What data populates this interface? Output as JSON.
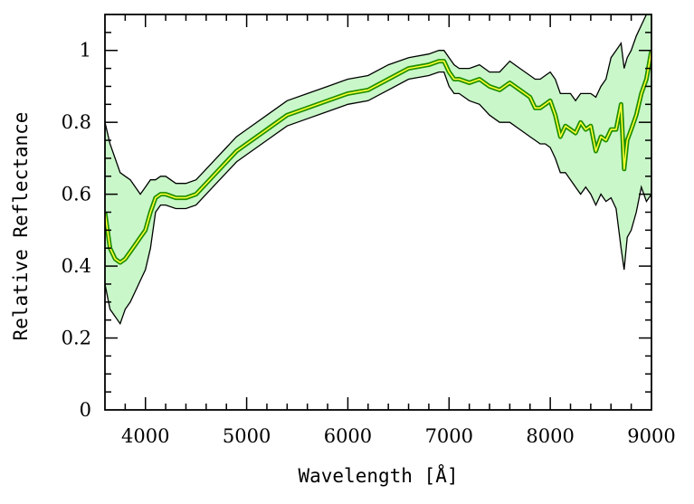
{
  "chart_data": {
    "type": "line",
    "xlabel": "Wavelength [Å]",
    "ylabel": "Relative Reflectance",
    "xlim": [
      3600,
      9000
    ],
    "ylim": [
      0,
      1.1
    ],
    "xticks": [
      4000,
      5000,
      6000,
      7000,
      8000,
      9000
    ],
    "xtick_labels": [
      "4000",
      "5000",
      "6000",
      "7000",
      "8000",
      "9000"
    ],
    "yticks": [
      0,
      0.2,
      0.4,
      0.6,
      0.8,
      1.0
    ],
    "ytick_labels": [
      "0",
      "0.2",
      "0.4",
      "0.6",
      "0.8",
      "1"
    ],
    "grid": false,
    "colors": {
      "line_outer": "#1f8f00",
      "line_inner": "#ffff33",
      "band_fill": "#c9f7c9",
      "band_edge": "#000000"
    },
    "series": [
      {
        "values_x": [
          3600,
          3650,
          3700,
          3750,
          3800,
          3850,
          3900,
          3950,
          4000,
          4050,
          4100,
          4150,
          4200,
          4300,
          4400,
          4500,
          4600,
          4700,
          4800,
          4900,
          5000,
          5200,
          5400,
          5600,
          5800,
          6000,
          6200,
          6400,
          6600,
          6800,
          6900,
          6950,
          7000,
          7050,
          7100,
          7200,
          7300,
          7400,
          7500,
          7600,
          7700,
          7800,
          7850,
          7900,
          7950,
          8000,
          8050,
          8100,
          8150,
          8200,
          8250,
          8300,
          8350,
          8400,
          8450,
          8500,
          8550,
          8600,
          8650,
          8700,
          8730,
          8760,
          8800,
          8850,
          8900,
          8950,
          9000
        ],
        "values_y": [
          0.55,
          0.45,
          0.42,
          0.41,
          0.42,
          0.44,
          0.46,
          0.48,
          0.5,
          0.55,
          0.59,
          0.6,
          0.6,
          0.59,
          0.59,
          0.6,
          0.63,
          0.66,
          0.69,
          0.72,
          0.74,
          0.78,
          0.82,
          0.84,
          0.86,
          0.88,
          0.89,
          0.92,
          0.95,
          0.96,
          0.97,
          0.97,
          0.94,
          0.92,
          0.92,
          0.91,
          0.92,
          0.9,
          0.89,
          0.91,
          0.89,
          0.87,
          0.84,
          0.84,
          0.85,
          0.86,
          0.82,
          0.76,
          0.79,
          0.78,
          0.77,
          0.8,
          0.78,
          0.79,
          0.72,
          0.76,
          0.75,
          0.78,
          0.78,
          0.85,
          0.67,
          0.75,
          0.78,
          0.82,
          0.88,
          0.92,
          1.0
        ]
      }
    ],
    "error_band": {
      "x": [
        3600,
        3650,
        3700,
        3750,
        3800,
        3850,
        3900,
        3950,
        4000,
        4050,
        4100,
        4150,
        4200,
        4300,
        4400,
        4500,
        4600,
        4700,
        4800,
        4900,
        5000,
        5200,
        5400,
        5600,
        5800,
        6000,
        6200,
        6400,
        6600,
        6800,
        6900,
        6950,
        7000,
        7050,
        7100,
        7200,
        7300,
        7400,
        7500,
        7600,
        7700,
        7800,
        7850,
        7900,
        7950,
        8000,
        8050,
        8100,
        8150,
        8200,
        8250,
        8300,
        8350,
        8400,
        8450,
        8500,
        8550,
        8600,
        8650,
        8700,
        8730,
        8760,
        8800,
        8850,
        8900,
        8950,
        9000
      ],
      "upper": [
        0.8,
        0.74,
        0.7,
        0.66,
        0.65,
        0.64,
        0.62,
        0.6,
        0.62,
        0.64,
        0.64,
        0.65,
        0.65,
        0.63,
        0.63,
        0.64,
        0.67,
        0.7,
        0.73,
        0.76,
        0.78,
        0.82,
        0.86,
        0.88,
        0.9,
        0.92,
        0.93,
        0.96,
        0.98,
        0.99,
        1.0,
        1.0,
        0.98,
        0.96,
        0.95,
        0.95,
        0.96,
        0.94,
        0.94,
        0.97,
        0.95,
        0.93,
        0.92,
        0.92,
        0.93,
        0.94,
        0.92,
        0.88,
        0.88,
        0.88,
        0.86,
        0.88,
        0.88,
        0.88,
        0.87,
        0.9,
        0.92,
        0.98,
        1.0,
        1.02,
        0.95,
        0.98,
        1.0,
        1.04,
        1.07,
        1.1,
        1.1
      ],
      "lower": [
        0.35,
        0.28,
        0.26,
        0.24,
        0.28,
        0.3,
        0.33,
        0.36,
        0.39,
        0.45,
        0.55,
        0.57,
        0.57,
        0.56,
        0.56,
        0.57,
        0.6,
        0.63,
        0.66,
        0.69,
        0.71,
        0.75,
        0.79,
        0.81,
        0.83,
        0.85,
        0.86,
        0.89,
        0.92,
        0.93,
        0.94,
        0.94,
        0.9,
        0.88,
        0.88,
        0.86,
        0.85,
        0.82,
        0.8,
        0.8,
        0.78,
        0.76,
        0.75,
        0.74,
        0.74,
        0.73,
        0.7,
        0.66,
        0.66,
        0.64,
        0.62,
        0.6,
        0.62,
        0.6,
        0.57,
        0.6,
        0.58,
        0.59,
        0.56,
        0.45,
        0.39,
        0.48,
        0.5,
        0.55,
        0.62,
        0.58,
        0.6
      ]
    }
  }
}
